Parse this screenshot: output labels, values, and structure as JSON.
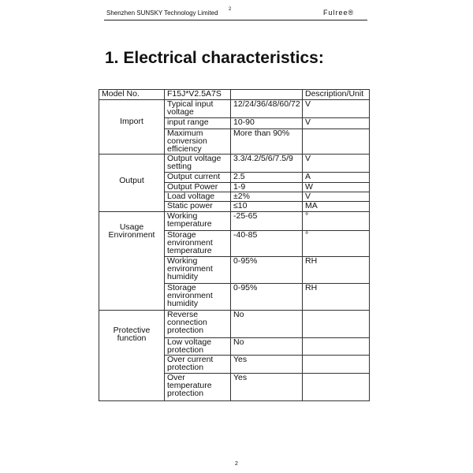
{
  "header": {
    "company": "Shenzhen SUNSKY Technology Limited",
    "page_sup": "2",
    "brand": "Fulree®"
  },
  "title": "1. Electrical characteristics:",
  "table": {
    "head": [
      "Model No.",
      "F15J*V2.5A7S",
      "",
      "Description/Unit"
    ],
    "groups": [
      {
        "label": "Import",
        "rows": [
          [
            "Typical input voltage",
            "12/24/36/48/60/72",
            "V"
          ],
          [
            "input range",
            "10-90",
            "V"
          ],
          [
            "Maximum conversion efficiency",
            "More than 90%",
            ""
          ]
        ]
      },
      {
        "label": "Output",
        "rows": [
          [
            "Output voltage setting",
            "3.3/4.2/5/6/7.5/9",
            "V"
          ],
          [
            "Output current",
            "2.5",
            "A"
          ],
          [
            "Output Power",
            "1-9",
            "W"
          ],
          [
            "Load voltage",
            "±2%",
            "V"
          ],
          [
            "Static power",
            "≤10",
            "MA"
          ]
        ]
      },
      {
        "label": "Usage Environment",
        "rows": [
          [
            "Working temperature",
            "-25-65",
            "°"
          ],
          [
            "Storage environment temperature",
            "-40-85",
            "°"
          ],
          [
            "Working environment humidity",
            "0-95%",
            "RH"
          ],
          [
            "Storage environment humidity",
            "0-95%",
            "RH"
          ]
        ]
      },
      {
        "label": "Protective function",
        "rows": [
          [
            "Reverse connection protection",
            "No",
            ""
          ],
          [
            "Low voltage protection",
            "No",
            ""
          ],
          [
            "Over current protection",
            "Yes",
            ""
          ],
          [
            "Over temperature protection",
            "Yes",
            ""
          ]
        ]
      }
    ]
  },
  "footer": {
    "page": "2"
  }
}
